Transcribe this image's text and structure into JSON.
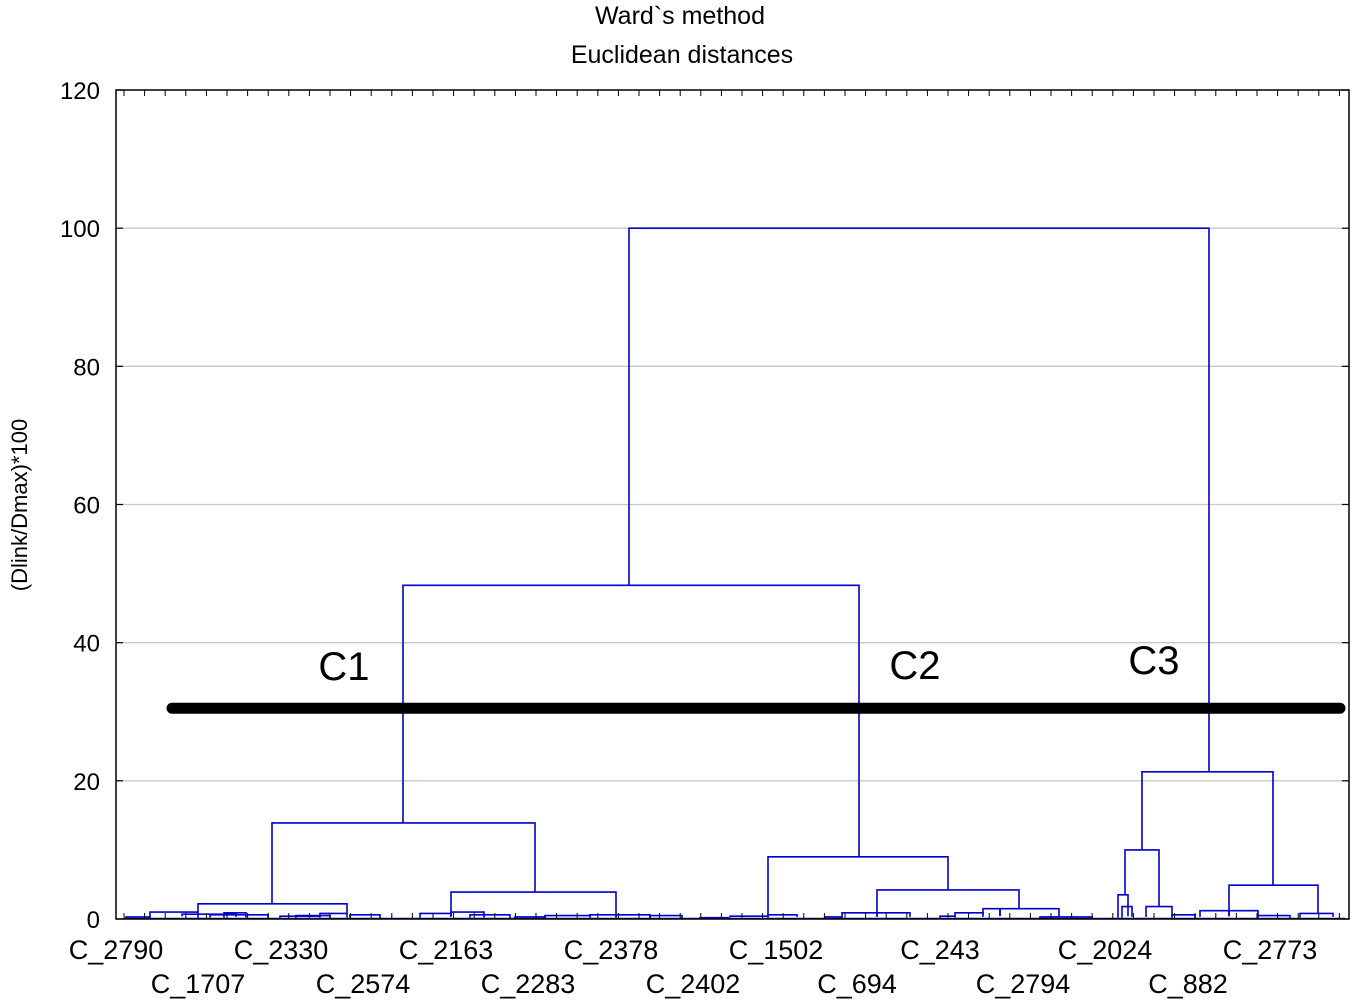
{
  "chart_data": {
    "type": "dendrogram",
    "title": "Ward`s method",
    "subtitle": "Euclidean distances",
    "ylabel": "(Dlink/Dmax)*100",
    "xlabel": "",
    "ylim": [
      0,
      120
    ],
    "yticks": [
      "0",
      "20",
      "40",
      "60",
      "80",
      "100",
      "120"
    ],
    "grid": true,
    "leaf_labels_row1": [
      "C_2790",
      "C_2330",
      "C_2163",
      "C_2378",
      "C_1502",
      "C_243",
      "C_2024",
      "C_2773"
    ],
    "leaf_labels_row2": [
      "C_1707",
      "C_2574",
      "C_2283",
      "C_2402",
      "C_694",
      "C_2794",
      "C_882"
    ],
    "cluster_labels": [
      "C1",
      "C2",
      "C3"
    ],
    "cut_height": 30.5,
    "merges": [
      {
        "left": "C1",
        "right": "C2",
        "height": 48.3
      },
      {
        "left": "C1+C2",
        "right": "C3",
        "height": 100
      },
      {
        "cluster": "C1",
        "height": 13.9
      },
      {
        "cluster": "C2",
        "height": 9.0
      },
      {
        "cluster": "C3",
        "height": 21.3
      }
    ],
    "colors": {
      "tree": "#0000cc",
      "cut_line": "#000000",
      "grid": "#c8c8c8"
    }
  }
}
